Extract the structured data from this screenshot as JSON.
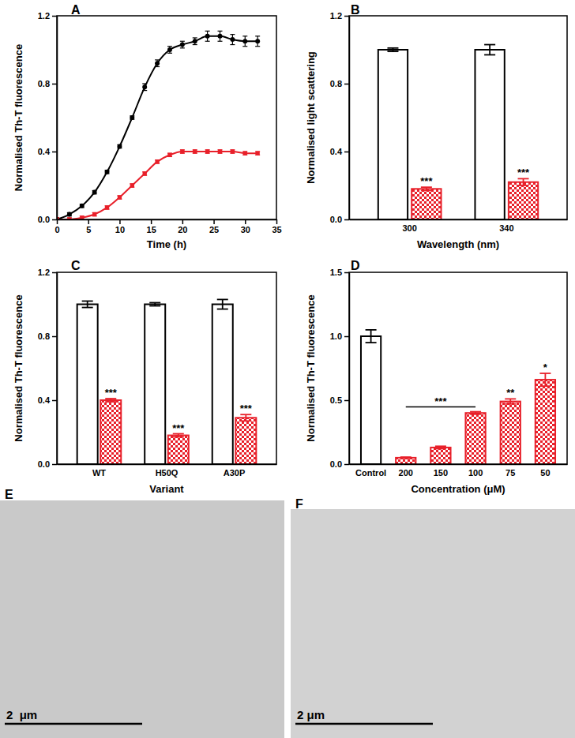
{
  "chart_data": [
    {
      "type": "line",
      "panel": "A",
      "x_label": "Time (h)",
      "y_label": "Normalised Th-T fluorescence",
      "x": [
        0,
        2,
        4,
        6,
        8,
        10,
        12,
        14,
        16,
        18,
        20,
        22,
        24,
        26,
        28,
        30,
        32
      ],
      "xlim": [
        0,
        35
      ],
      "xticks": [
        0,
        5,
        10,
        15,
        20,
        25,
        30,
        35
      ],
      "ylim": [
        0,
        1.2
      ],
      "yticks": [
        {
          "value": 0,
          "label": "0.0"
        },
        0.4,
        0.8,
        1.2
      ],
      "series": [
        {
          "color": "#000000",
          "marker": "circle",
          "line_style": "solid",
          "values": [
            0,
            0.03,
            0.08,
            0.16,
            0.28,
            0.43,
            0.6,
            0.78,
            0.92,
            1.0,
            1.03,
            1.05,
            1.08,
            1.08,
            1.06,
            1.05,
            1.05
          ],
          "errors": [
            0.01,
            0.01,
            0.01,
            0.01,
            0.01,
            0.01,
            0.01,
            0.02,
            0.02,
            0.02,
            0.02,
            0.02,
            0.03,
            0.03,
            0.03,
            0.03,
            0.03
          ]
        },
        {
          "color": "#e8202a",
          "marker": "square",
          "line_style": "solid",
          "values": [
            0,
            0,
            0.01,
            0.03,
            0.07,
            0.13,
            0.2,
            0.27,
            0.34,
            0.38,
            0.4,
            0.4,
            0.4,
            0.4,
            0.4,
            0.39,
            0.39
          ],
          "errors": [
            0.01,
            0.01,
            0.01,
            0.01,
            0.01,
            0.01,
            0.01,
            0.01,
            0.01,
            0.01,
            0.01,
            0.01,
            0.01,
            0.01,
            0.01,
            0.01,
            0.01
          ]
        }
      ]
    },
    {
      "type": "bar",
      "panel": "B",
      "x_label": "Wavelength (nm)",
      "y_label": "Normalised light scattering",
      "categories": [
        "300",
        "340"
      ],
      "ylim": [
        0,
        1.2
      ],
      "yticks": [
        {
          "value": 0,
          "label": "0.0"
        },
        0.4,
        0.8,
        1.2
      ],
      "series": [
        {
          "color": "#ffffff",
          "values": [
            1.0,
            1.0
          ],
          "errors": [
            0.01,
            0.03
          ]
        },
        {
          "color": "#e8202a",
          "values": [
            0.18,
            0.22
          ],
          "errors": [
            0.01,
            0.02
          ],
          "significance": [
            "***",
            "***"
          ]
        }
      ]
    },
    {
      "type": "bar",
      "panel": "C",
      "x_label": "Variant",
      "y_label": "Normalised Th-T fluorescence",
      "categories": [
        "WT",
        "H50Q",
        "A30P"
      ],
      "ylim": [
        0,
        1.2
      ],
      "yticks": [
        {
          "value": 0,
          "label": "0.0"
        },
        0.4,
        0.8,
        1.2
      ],
      "series": [
        {
          "color": "#ffffff",
          "values": [
            1.0,
            1.0,
            1.0
          ],
          "errors": [
            0.02,
            0.01,
            0.03
          ]
        },
        {
          "color": "#e8202a",
          "values": [
            0.4,
            0.18,
            0.29
          ],
          "errors": [
            0.01,
            0.01,
            0.02
          ],
          "significance": [
            "***",
            "***",
            "***"
          ]
        }
      ]
    },
    {
      "type": "bar",
      "panel": "D",
      "x_label": "Concentration (μM)",
      "y_label": "Normalised Th-T fluorescence",
      "categories": [
        "Control",
        "200",
        "150",
        "100",
        "75",
        "50"
      ],
      "ylim": [
        0,
        1.5
      ],
      "yticks": [
        {
          "value": 0,
          "label": "0.0"
        },
        0.5,
        {
          "value": 1,
          "label": "1.0"
        },
        1.5
      ],
      "series": [
        {
          "colors": [
            "#ffffff",
            "#e8202a",
            "#e8202a",
            "#e8202a",
            "#e8202a",
            "#e8202a"
          ],
          "values": [
            1.0,
            0.05,
            0.13,
            0.4,
            0.49,
            0.66
          ],
          "errors": [
            0.05,
            0.005,
            0.01,
            0.01,
            0.02,
            0.05
          ],
          "significance": [
            null,
            null,
            null,
            null,
            "**",
            "*"
          ]
        }
      ],
      "brackets": [
        {
          "text": "***",
          "from": "200",
          "to": "100"
        }
      ]
    },
    {
      "type": "image",
      "panel": "E",
      "scale_bar": "2  μm"
    },
    {
      "type": "image",
      "panel": "F",
      "scale_bar": "2 μm"
    }
  ]
}
